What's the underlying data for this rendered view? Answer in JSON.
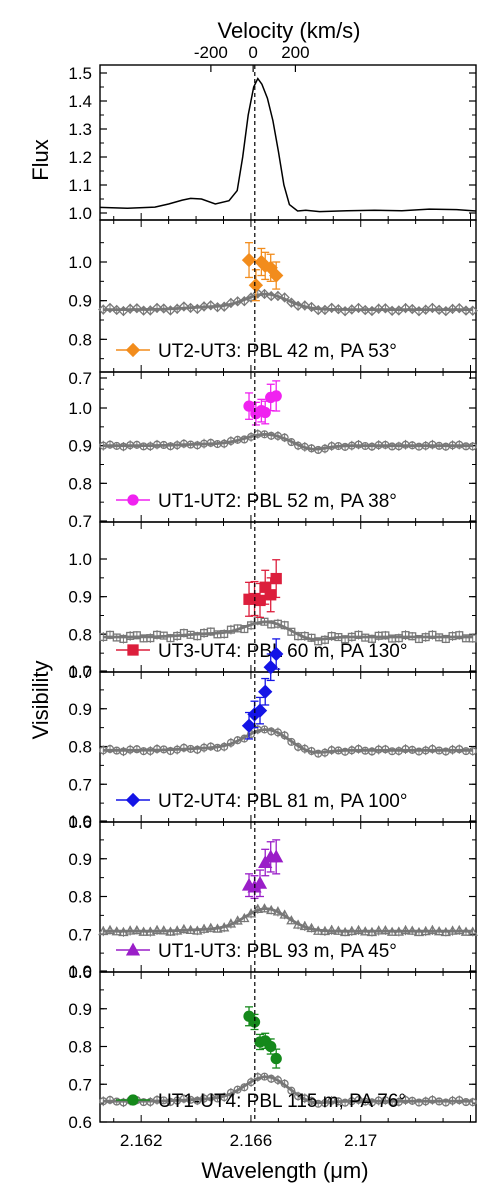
{
  "figure": {
    "top_axis_label": "Velocity (km/s)",
    "top_ticks": [
      {
        "label": "-200",
        "x": 2.16454
      },
      {
        "label": "0",
        "x": 2.16608
      },
      {
        "label": "200",
        "x": 2.16762
      }
    ],
    "xlabel": "Wavelength (μm)",
    "ylabel_flux": "Flux",
    "ylabel_vis": "Visibility",
    "colors": {
      "continuum_points": "#777777",
      "orange": "#f28c1c",
      "magenta": "#f022f0",
      "crimson": "#dc1e3c",
      "blue": "#1414e6",
      "purple": "#9a1ec8",
      "green": "#15891b"
    }
  },
  "chart_data": [
    {
      "type": "line",
      "id": "flux",
      "ylabel": "Flux",
      "xlim": [
        2.1605,
        2.1742
      ],
      "ylim": [
        0.97,
        1.5
      ],
      "yticks": [
        1.0,
        1.1,
        1.2,
        1.3,
        1.4,
        1.5
      ],
      "vline_x": 2.16614,
      "x": [
        2.1605,
        2.1615,
        2.1625,
        2.163,
        2.1635,
        2.1638,
        2.1642,
        2.1647,
        2.1652,
        2.1655,
        2.1657,
        2.1659,
        2.1661,
        2.16625,
        2.1664,
        2.1666,
        2.1668,
        2.167,
        2.1672,
        2.1674,
        2.1677,
        2.168,
        2.1685,
        2.1695,
        2.1705,
        2.1715,
        2.1725,
        2.1735,
        2.1742
      ],
      "y": [
        1.02,
        1.017,
        1.021,
        1.032,
        1.046,
        1.052,
        1.05,
        1.032,
        1.044,
        1.08,
        1.2,
        1.35,
        1.45,
        1.48,
        1.46,
        1.41,
        1.33,
        1.22,
        1.1,
        1.03,
        1.007,
        1.01,
        1.005,
        1.008,
        1.01,
        1.008,
        1.014,
        1.012,
        1.007
      ]
    },
    {
      "type": "scatter",
      "id": "p1",
      "label": "UT2-UT3: PBL 42 m, PA 53°",
      "color": "#f28c1c",
      "marker": "diamond",
      "cont_marker": "diamond",
      "xlim": [
        2.1605,
        2.1742
      ],
      "ylim": [
        0.7,
        1.1
      ],
      "yticks": [
        0.7,
        0.8,
        0.9,
        1.0
      ],
      "cont_base": 0.877,
      "cont_peak": 0.04,
      "cont_dip": 0.0,
      "cont_wiggle": 0.006,
      "series_x": [
        2.16593,
        2.16618,
        2.16638,
        2.16652,
        2.16672,
        2.16692
      ],
      "series_y": [
        1.005,
        0.94,
        1.0,
        0.99,
        0.985,
        0.965
      ],
      "series_err": [
        0.045,
        0.04,
        0.035,
        0.035,
        0.035,
        0.035
      ]
    },
    {
      "type": "scatter",
      "id": "p2",
      "label": "UT1-UT2: PBL 52 m, PA 38°",
      "color": "#f022f0",
      "marker": "circle",
      "cont_marker": "circle",
      "xlim": [
        2.1605,
        2.1742
      ],
      "ylim": [
        0.7,
        1.1
      ],
      "yticks": [
        0.7,
        0.8,
        0.9,
        1.0
      ],
      "cont_base": 0.9,
      "cont_peak": 0.03,
      "cont_dip": 0.012,
      "cont_wiggle": 0.004,
      "series_x": [
        2.16593,
        2.16618,
        2.16638,
        2.16652,
        2.16672,
        2.16692
      ],
      "series_y": [
        1.005,
        0.985,
        0.993,
        0.988,
        1.028,
        1.032
      ],
      "series_err": [
        0.035,
        0.03,
        0.03,
        0.03,
        0.035,
        0.04
      ]
    },
    {
      "type": "scatter",
      "id": "p3",
      "label": "UT3-UT4: PBL 60 m, PA 130°",
      "color": "#dc1e3c",
      "marker": "square",
      "cont_marker": "square",
      "xlim": [
        2.1605,
        2.1742
      ],
      "ylim": [
        0.7,
        1.05
      ],
      "yticks": [
        0.7,
        0.8,
        0.9,
        1.0
      ],
      "cont_base": 0.793,
      "cont_peak": 0.04,
      "cont_dip": 0.01,
      "cont_wiggle": 0.008,
      "series_x": [
        2.16593,
        2.16613,
        2.16633,
        2.16652,
        2.16672,
        2.16692
      ],
      "series_y": [
        0.893,
        0.895,
        0.89,
        0.925,
        0.905,
        0.948
      ],
      "series_err": [
        0.045,
        0.045,
        0.045,
        0.045,
        0.045,
        0.05
      ]
    },
    {
      "type": "scatter",
      "id": "p4",
      "label": "UT2-UT4: PBL 81 m, PA 100°",
      "color": "#1414e6",
      "marker": "diamond",
      "cont_marker": "circle",
      "xlim": [
        2.1605,
        2.1742
      ],
      "ylim": [
        0.6,
        1.05
      ],
      "yticks": [
        0.6,
        0.7,
        0.8,
        0.9,
        1.0
      ],
      "cont_base": 0.79,
      "cont_peak": 0.055,
      "cont_dip": 0.01,
      "cont_wiggle": 0.005,
      "series_x": [
        2.16593,
        2.16613,
        2.16633,
        2.16652,
        2.16672,
        2.16692
      ],
      "series_y": [
        0.855,
        0.885,
        0.895,
        0.945,
        1.01,
        1.045
      ],
      "series_err": [
        0.035,
        0.035,
        0.035,
        0.035,
        0.035,
        0.04
      ]
    },
    {
      "type": "scatter",
      "id": "p5",
      "label": "UT1-UT3: PBL 93 m, PA 45°",
      "color": "#9a1ec8",
      "marker": "triangle",
      "cont_marker": "triangle",
      "xlim": [
        2.1605,
        2.1742
      ],
      "ylim": [
        0.6,
        1.1
      ],
      "yticks": [
        0.6,
        0.7,
        0.8,
        0.9,
        1.0
      ],
      "cont_base": 0.708,
      "cont_peak": 0.06,
      "cont_dip": 0.0,
      "cont_wiggle": 0.004,
      "series_x": [
        2.16593,
        2.16613,
        2.16633,
        2.16652,
        2.16672,
        2.16692
      ],
      "series_y": [
        0.83,
        0.825,
        0.835,
        0.89,
        0.905,
        0.905
      ],
      "series_err": [
        0.03,
        0.03,
        0.035,
        0.035,
        0.04,
        0.045
      ]
    },
    {
      "type": "scatter",
      "id": "p6",
      "label": "UT1-UT4: PBL 115 m, PA 76°",
      "color": "#15891b",
      "marker": "circle",
      "cont_marker": "circle",
      "xlim": [
        2.1605,
        2.1742
      ],
      "ylim": [
        0.6,
        1.1
      ],
      "yticks": [
        0.6,
        0.7,
        0.8,
        0.9,
        1.0
      ],
      "cont_base": 0.655,
      "cont_peak": 0.065,
      "cont_dip": 0.008,
      "cont_wiggle": 0.005,
      "series_x": [
        2.16593,
        2.16613,
        2.16633,
        2.16652,
        2.16672,
        2.16692
      ],
      "series_y": [
        0.88,
        0.865,
        0.812,
        0.815,
        0.8,
        0.768
      ],
      "series_err": [
        0.025,
        0.02,
        0.02,
        0.02,
        0.02,
        0.025
      ]
    }
  ],
  "bottom_axis": {
    "ticks": [
      {
        "label": "2.162",
        "x": 2.162
      },
      {
        "label": "2.166",
        "x": 2.166
      },
      {
        "label": "2.17",
        "x": 2.17
      }
    ]
  }
}
